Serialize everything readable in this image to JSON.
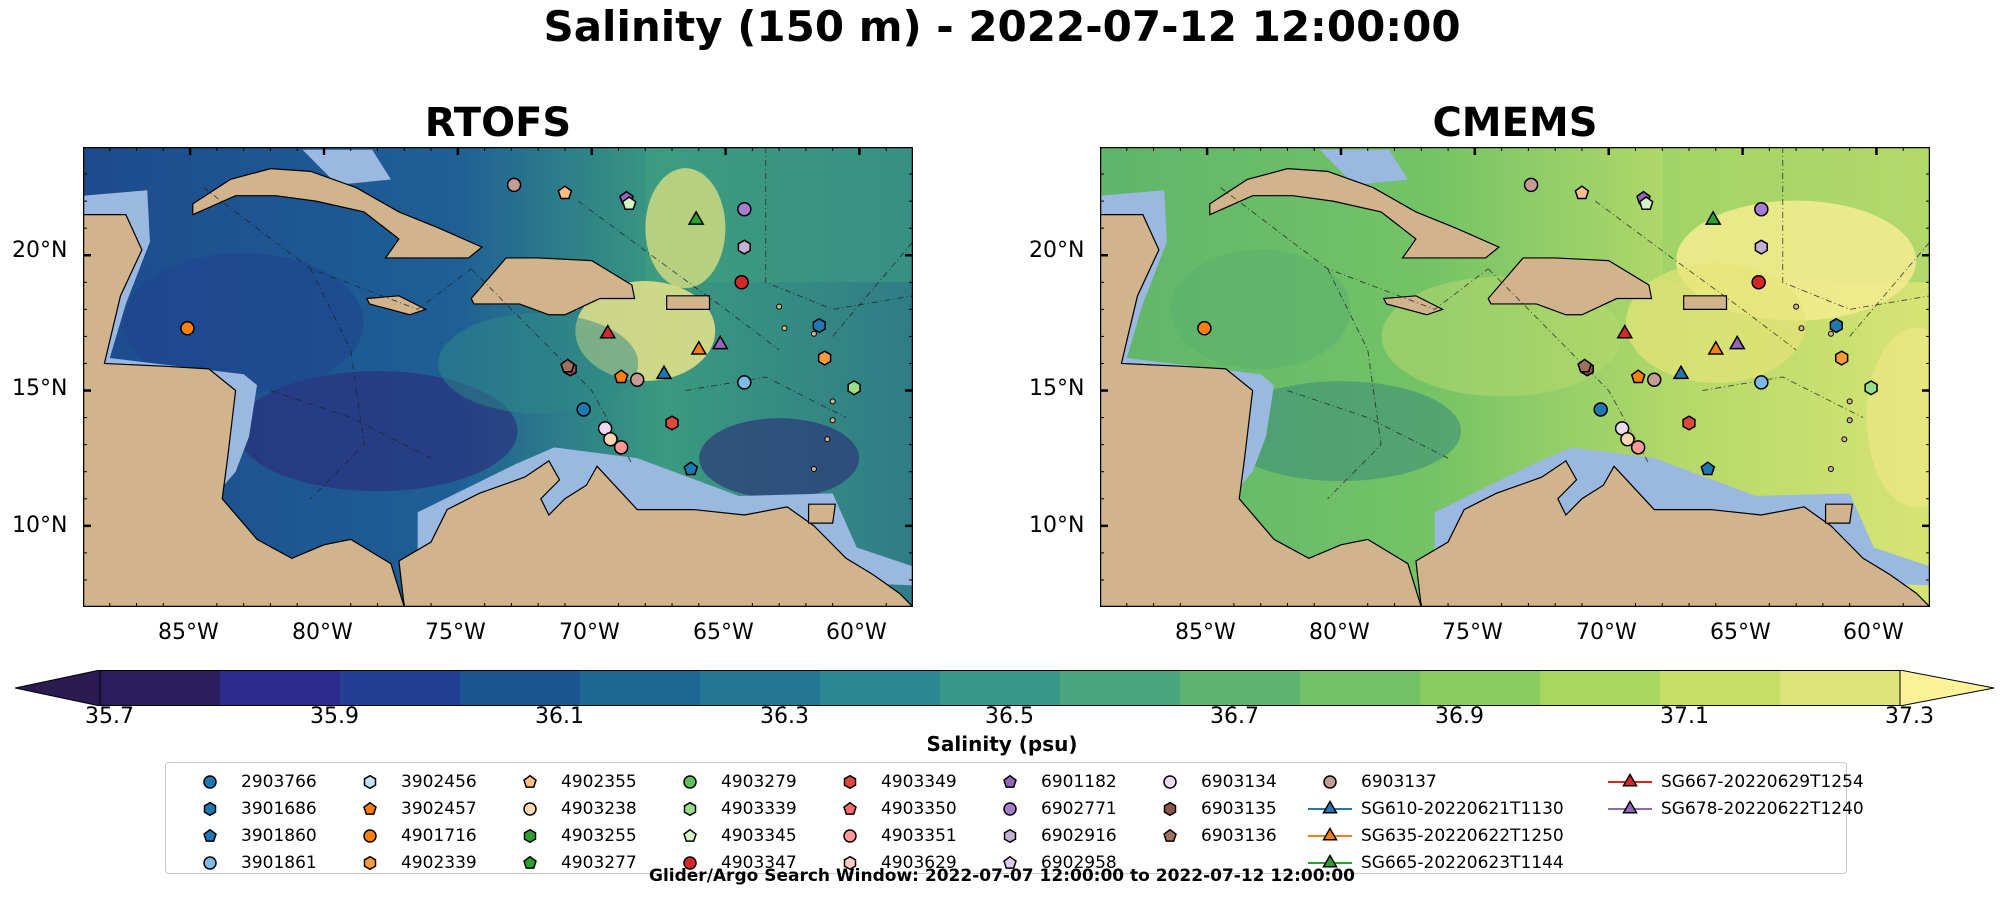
{
  "title": "Salinity (150 m) - 2022-07-12 12:00:00",
  "panels": [
    {
      "title": "RTOFS"
    },
    {
      "title": "CMEMS"
    }
  ],
  "axes": {
    "lat_labels": [
      "20°N",
      "15°N",
      "10°N"
    ],
    "lon_labels": [
      "85°W",
      "80°W",
      "75°W",
      "70°W",
      "65°W",
      "60°W"
    ],
    "lon_range": [
      -89,
      -58
    ],
    "lat_range": [
      7,
      24
    ]
  },
  "colorbar": {
    "label": "Salinity (psu)",
    "ticks": [
      "35.7",
      "35.9",
      "36.1",
      "36.3",
      "36.5",
      "36.7",
      "36.9",
      "37.1",
      "37.3"
    ],
    "range": [
      35.7,
      37.3
    ],
    "colormap": "haline",
    "extend": "both"
  },
  "legend": {
    "entries": [
      {
        "label": "2903766",
        "marker": "circle",
        "color": "#1f77b4"
      },
      {
        "label": "3901686",
        "marker": "hexagon",
        "color": "#1f77b4"
      },
      {
        "label": "3901860",
        "marker": "pentagon",
        "color": "#1f77b4"
      },
      {
        "label": "3901861",
        "marker": "circle",
        "color": "#7fb9e6"
      },
      {
        "label": "3902456",
        "marker": "hexagon",
        "color": "#c3e3f7"
      },
      {
        "label": "3902457",
        "marker": "pentagon",
        "color": "#ff7f0e"
      },
      {
        "label": "4901716",
        "marker": "circle",
        "color": "#ff7f0e"
      },
      {
        "label": "4902339",
        "marker": "hexagon",
        "color": "#ff9a3c"
      },
      {
        "label": "4902355",
        "marker": "pentagon",
        "color": "#ffbf86"
      },
      {
        "label": "4903238",
        "marker": "circle",
        "color": "#ffd7b0"
      },
      {
        "label": "4903255",
        "marker": "hexagon",
        "color": "#2ca02c"
      },
      {
        "label": "4903277",
        "marker": "pentagon",
        "color": "#2ca02c"
      },
      {
        "label": "4903279",
        "marker": "circle",
        "color": "#5cc05c"
      },
      {
        "label": "4903339",
        "marker": "hexagon",
        "color": "#98df8a"
      },
      {
        "label": "4903345",
        "marker": "pentagon",
        "color": "#d4f5c6"
      },
      {
        "label": "4903347",
        "marker": "circle",
        "color": "#d62728"
      },
      {
        "label": "4903349",
        "marker": "hexagon",
        "color": "#e0483e"
      },
      {
        "label": "4903350",
        "marker": "pentagon",
        "color": "#ff6b6b"
      },
      {
        "label": "4903351",
        "marker": "circle",
        "color": "#ff9896"
      },
      {
        "label": "4903629",
        "marker": "hexagon",
        "color": "#ffc9c8"
      },
      {
        "label": "6901182",
        "marker": "pentagon",
        "color": "#9467bd"
      },
      {
        "label": "6902771",
        "marker": "circle",
        "color": "#a77dd1"
      },
      {
        "label": "6902916",
        "marker": "hexagon",
        "color": "#c5b0d5"
      },
      {
        "label": "6902958",
        "marker": "pentagon",
        "color": "#dccbee"
      },
      {
        "label": "6903134",
        "marker": "circle",
        "color": "#eed9f2"
      },
      {
        "label": "6903135",
        "marker": "hexagon",
        "color": "#8c564b"
      },
      {
        "label": "6903136",
        "marker": "pentagon",
        "color": "#a0705f"
      },
      {
        "label": "6903137",
        "marker": "circle",
        "color": "#c49c94"
      },
      {
        "label": "SG610-20220621T1130",
        "marker": "triangle",
        "color": "#1f77b4"
      },
      {
        "label": "SG635-20220622T1250",
        "marker": "triangle",
        "color": "#ff7f0e"
      },
      {
        "label": "SG665-20220623T1144",
        "marker": "triangle",
        "color": "#2ca02c"
      },
      {
        "label": "SG667-20220629T1254",
        "marker": "triangle",
        "color": "#d62728"
      },
      {
        "label": "SG678-20220622T1240",
        "marker": "triangle",
        "color": "#9467bd"
      }
    ]
  },
  "footer": "Glider/Argo Search Window: 2022-07-07 12:00:00 to 2022-07-12 12:00:00",
  "markers": [
    {
      "id": "4901716",
      "marker": "circle",
      "color": "#ff7f0e",
      "lon": -85.1,
      "lat": 17.3
    },
    {
      "id": "6903137",
      "marker": "circle",
      "color": "#c49c94",
      "lon": -72.9,
      "lat": 22.6
    },
    {
      "id": "4902355",
      "marker": "pentagon",
      "color": "#ffbf86",
      "lon": -71.0,
      "lat": 22.3
    },
    {
      "id": "6901182",
      "marker": "pentagon",
      "color": "#9467bd",
      "lon": -68.7,
      "lat": 22.1
    },
    {
      "id": "4903345",
      "marker": "pentagon",
      "color": "#d4f5c6",
      "lon": -68.6,
      "lat": 21.9
    },
    {
      "id": "SG665",
      "marker": "triangle",
      "color": "#2ca02c",
      "lon": -66.1,
      "lat": 21.3
    },
    {
      "id": "6902771",
      "marker": "circle",
      "color": "#a77dd1",
      "lon": -64.3,
      "lat": 21.7
    },
    {
      "id": "6902916",
      "marker": "hexagon",
      "color": "#c5b0d5",
      "lon": -64.3,
      "lat": 20.3
    },
    {
      "id": "4903347",
      "marker": "circle",
      "color": "#d62728",
      "lon": -64.4,
      "lat": 19.0
    },
    {
      "id": "3901686",
      "marker": "hexagon",
      "color": "#1f77b4",
      "lon": -61.5,
      "lat": 17.4
    },
    {
      "id": "SG667",
      "marker": "triangle",
      "color": "#d62728",
      "lon": -69.4,
      "lat": 17.1
    },
    {
      "id": "SG635",
      "marker": "triangle",
      "color": "#ff7f0e",
      "lon": -66.0,
      "lat": 16.5
    },
    {
      "id": "SG678",
      "marker": "triangle",
      "color": "#9467bd",
      "lon": -65.2,
      "lat": 16.7
    },
    {
      "id": "SG610",
      "marker": "triangle",
      "color": "#1f77b4",
      "lon": -67.3,
      "lat": 15.6
    },
    {
      "id": "4902339",
      "marker": "hexagon",
      "color": "#ff9a3c",
      "lon": -61.3,
      "lat": 16.2
    },
    {
      "id": "3901861",
      "marker": "circle",
      "color": "#7fb9e6",
      "lon": -64.3,
      "lat": 15.3
    },
    {
      "id": "4903339",
      "marker": "hexagon",
      "color": "#98df8a",
      "lon": -60.2,
      "lat": 15.1
    },
    {
      "id": "6903135",
      "marker": "hexagon",
      "color": "#8c564b",
      "lon": -70.8,
      "lat": 15.8
    },
    {
      "id": "6903136",
      "marker": "pentagon",
      "color": "#a0705f",
      "lon": -70.9,
      "lat": 15.9
    },
    {
      "id": "3902457",
      "marker": "pentagon",
      "color": "#ff7f0e",
      "lon": -68.9,
      "lat": 15.5
    },
    {
      "id": "6903137b",
      "marker": "circle",
      "color": "#c49c94",
      "lon": -68.3,
      "lat": 15.4
    },
    {
      "id": "2903766",
      "marker": "circle",
      "color": "#1f77b4",
      "lon": -70.3,
      "lat": 14.3
    },
    {
      "id": "4903349",
      "marker": "hexagon",
      "color": "#e0483e",
      "lon": -67.0,
      "lat": 13.8
    },
    {
      "id": "6903134",
      "marker": "circle",
      "color": "#eed9f2",
      "lon": -69.5,
      "lat": 13.6
    },
    {
      "id": "4903238",
      "marker": "circle",
      "color": "#ffd7b0",
      "lon": -69.3,
      "lat": 13.2
    },
    {
      "id": "4903351",
      "marker": "circle",
      "color": "#ff9896",
      "lon": -68.9,
      "lat": 12.9
    },
    {
      "id": "3901860",
      "marker": "pentagon",
      "color": "#1f77b4",
      "lon": -66.3,
      "lat": 12.1
    }
  ]
}
